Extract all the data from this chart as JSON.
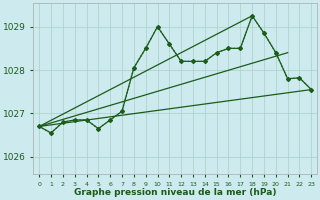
{
  "bg_color": "#cdeaee",
  "grid_color": "#b0d4cc",
  "line_color": "#1a5c1a",
  "xlabel": "Graphe pression niveau de la mer (hPa)",
  "ylim": [
    1025.6,
    1029.55
  ],
  "xlim": [
    -0.5,
    23.5
  ],
  "yticks": [
    1026,
    1027,
    1028,
    1029
  ],
  "xticks": [
    0,
    1,
    2,
    3,
    4,
    5,
    6,
    7,
    8,
    9,
    10,
    11,
    12,
    13,
    14,
    15,
    16,
    17,
    18,
    19,
    20,
    21,
    22,
    23
  ],
  "main_x": [
    0,
    1,
    2,
    3,
    4,
    5,
    6,
    7,
    8,
    9,
    10,
    11,
    12,
    13,
    14,
    15,
    16,
    17,
    18,
    19,
    20,
    21,
    22,
    23
  ],
  "main_y": [
    1026.7,
    1026.55,
    1026.8,
    1026.85,
    1026.85,
    1026.65,
    1026.85,
    1027.05,
    1028.05,
    1028.5,
    1029.0,
    1028.6,
    1028.2,
    1028.2,
    1028.2,
    1028.4,
    1028.5,
    1028.5,
    1029.25,
    1028.85,
    1028.4,
    1027.8,
    1027.82,
    1027.55
  ],
  "trend1_x": [
    0,
    23
  ],
  "trend1_y": [
    1026.7,
    1027.55
  ],
  "trend2_x": [
    0,
    21
  ],
  "trend2_y": [
    1026.7,
    1028.4
  ],
  "trend3_x": [
    0,
    18
  ],
  "trend3_y": [
    1026.7,
    1029.25
  ]
}
